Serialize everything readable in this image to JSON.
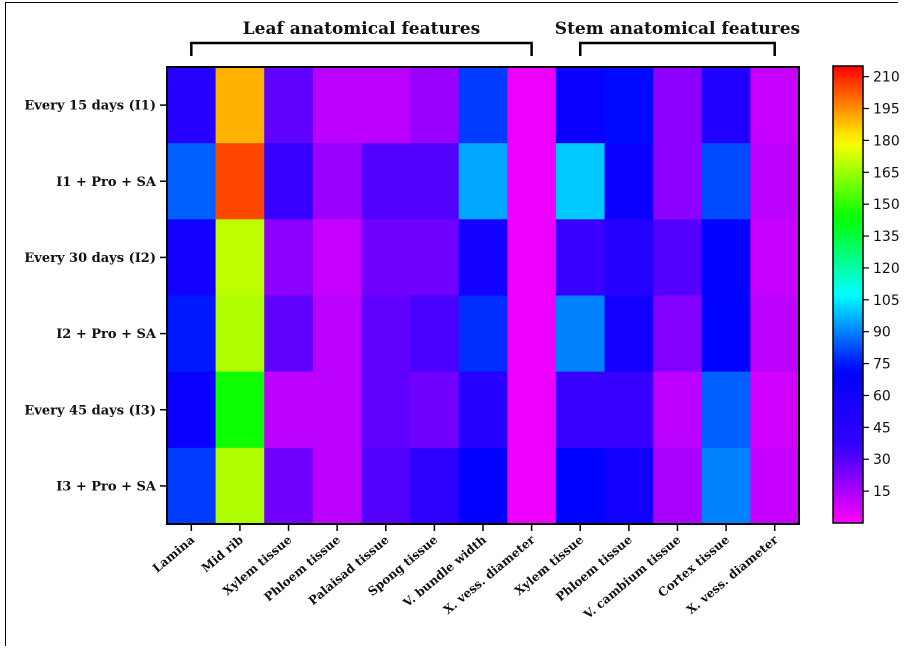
{
  "chart_data": {
    "type": "heatmap",
    "groups": [
      {
        "label": "Leaf anatomical features",
        "from": 0,
        "to": 7
      },
      {
        "label": "Stem anatomical features",
        "from": 8,
        "to": 12
      }
    ],
    "rows": [
      "Every 15 days (I1)",
      "I1 + Pro + SA",
      "Every 30 days (I2)",
      "I2 + Pro + SA",
      "Every 45 days (I3)",
      "I3 + Pro + SA"
    ],
    "columns": [
      "Lamina",
      "Mid rib",
      "Xylem  tissue",
      "Phloem  tissue",
      "Palaisad  tissue",
      "Spong tissue",
      "V. bundle width",
      "X. vess. diameter",
      "Xylem tissue",
      "Phloem  tissue",
      "V. cambium tissue",
      "Cortex tissue",
      "X. vess. diameter"
    ],
    "values": [
      [
        45,
        190,
        28,
        12,
        12,
        18,
        80,
        3,
        65,
        73,
        20,
        50,
        10
      ],
      [
        85,
        205,
        35,
        18,
        30,
        30,
        95,
        3,
        100,
        65,
        20,
        82,
        12
      ],
      [
        60,
        170,
        20,
        10,
        25,
        25,
        60,
        3,
        35,
        45,
        30,
        70,
        10
      ],
      [
        75,
        168,
        28,
        12,
        28,
        32,
        78,
        3,
        90,
        60,
        22,
        72,
        12
      ],
      [
        65,
        145,
        12,
        12,
        28,
        25,
        45,
        3,
        35,
        35,
        12,
        85,
        8
      ],
      [
        80,
        168,
        25,
        12,
        30,
        40,
        70,
        3,
        72,
        60,
        15,
        90,
        10
      ]
    ],
    "colorbar": {
      "min": 0,
      "max": 215,
      "ticks": [
        15,
        30,
        45,
        60,
        75,
        90,
        105,
        120,
        135,
        150,
        165,
        180,
        195,
        210
      ]
    },
    "colormap": [
      "#ff00ff",
      "#3300ff",
      "#0000ff",
      "#00ffff",
      "#00ff00",
      "#ffff00",
      "#ff0000"
    ]
  }
}
